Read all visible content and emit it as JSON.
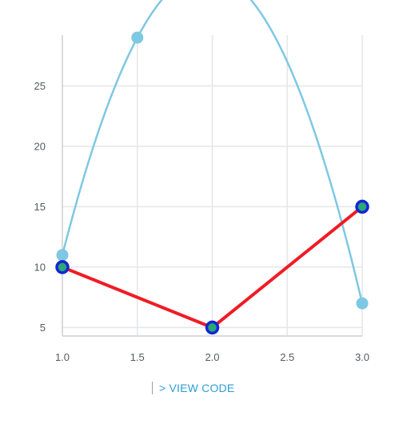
{
  "chart_data": {
    "type": "line",
    "xlim": [
      1.0,
      3.0
    ],
    "ylim": [
      4.3,
      29.2
    ],
    "x_ticks": [
      "1.0",
      "1.5",
      "2.0",
      "2.5",
      "3.0"
    ],
    "y_ticks": [
      "5",
      "10",
      "15",
      "20",
      "25"
    ],
    "grid": true,
    "series": [
      {
        "style": "smooth line with filled circle markers",
        "color": "#7ec8e3",
        "x": [
          1.0,
          1.5,
          3.0
        ],
        "y": [
          11,
          29,
          7
        ]
      },
      {
        "style": "straight line with ringed markers",
        "color": "#ef1c25",
        "marker_ring": "#1227d4",
        "marker_fill": "#2aa876",
        "x": [
          1.0,
          2.0,
          3.0
        ],
        "y": [
          10,
          5,
          15
        ]
      }
    ]
  },
  "footer": {
    "link_label": "> VIEW CODE"
  }
}
